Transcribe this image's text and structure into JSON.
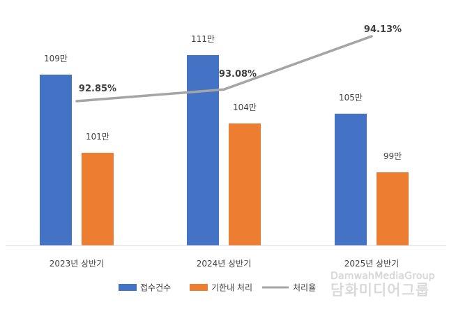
{
  "chart_data": {
    "type": "bar",
    "categories": [
      "2023년 상반기",
      "2024년 상반기",
      "2025년 상반기"
    ],
    "series": [
      {
        "name": "접수건수",
        "kind": "bar",
        "color": "#4472C4",
        "values": [
          109,
          111,
          105
        ],
        "labels": [
          "109만",
          "111만",
          "105만"
        ]
      },
      {
        "name": "기한내 처리",
        "kind": "bar",
        "color": "#ED7D31",
        "values": [
          101,
          104,
          99
        ],
        "labels": [
          "101만",
          "104만",
          "99만"
        ]
      },
      {
        "name": "처리율",
        "kind": "line",
        "color": "#A5A5A5",
        "values": [
          92.85,
          93.08,
          94.13
        ],
        "labels": [
          "92.85%",
          "93.08%",
          "94.13%"
        ]
      }
    ],
    "legend_position": "bottom",
    "grid": false
  },
  "watermark": {
    "en": "DamwahMediaGroup",
    "ko": "담화미디어그룹"
  }
}
